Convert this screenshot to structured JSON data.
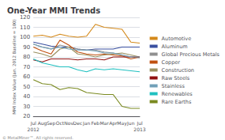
{
  "chart_data": {
    "type": "line",
    "title": "One-Year MMI Trends",
    "ylabel": "MMI Index Value (Jan. 2012 Baseline = 100)",
    "footer": "© MetalMiner™. All rights reserved.",
    "categories": [
      "Jul",
      "Aug",
      "Sep",
      "Oct",
      "Nov",
      "Dec",
      "Jan",
      "Feb",
      "Mar",
      "Apr",
      "May",
      "Jun",
      "Jul"
    ],
    "category_years": [
      "2012",
      null,
      null,
      null,
      null,
      null,
      null,
      null,
      null,
      null,
      null,
      null,
      "2013"
    ],
    "series": [
      {
        "name": "Automotive",
        "color": "#d4891a",
        "values": [
          101,
          102,
          100,
          103,
          101,
          100,
          101,
          113,
          110,
          109,
          108,
          95,
          94
        ]
      },
      {
        "name": "Aluminum",
        "color": "#3a50a0",
        "values": [
          95,
          93,
          91,
          90,
          90,
          88,
          87,
          88,
          88,
          88,
          90,
          90,
          90
        ]
      },
      {
        "name": "Global Precious Metals",
        "color": "#909090",
        "values": [
          93,
          90,
          88,
          92,
          90,
          88,
          87,
          87,
          85,
          84,
          82,
          80,
          79
        ]
      },
      {
        "name": "Copper",
        "color": "#c05010",
        "values": [
          90,
          86,
          83,
          97,
          92,
          85,
          83,
          82,
          83,
          82,
          81,
          78,
          80
        ]
      },
      {
        "name": "Construction",
        "color": "#9a9060",
        "values": [
          85,
          83,
          80,
          88,
          90,
          83,
          82,
          80,
          82,
          83,
          84,
          82,
          80
        ]
      },
      {
        "name": "Raw Steels",
        "color": "#901010",
        "values": [
          77,
          75,
          78,
          78,
          78,
          77,
          78,
          78,
          77,
          80,
          80,
          80,
          80
        ]
      },
      {
        "name": "Stainless",
        "color": "#70a0b8",
        "values": [
          93,
          90,
          88,
          90,
          88,
          87,
          87,
          86,
          84,
          84,
          82,
          80,
          80
        ]
      },
      {
        "name": "Renewables",
        "color": "#20c0c0",
        "values": [
          78,
          74,
          72,
          70,
          70,
          67,
          65,
          68,
          67,
          68,
          67,
          66,
          65
        ]
      },
      {
        "name": "Rare Earths",
        "color": "#7a8a20",
        "values": [
          57,
          53,
          52,
          47,
          49,
          48,
          44,
          43,
          42,
          42,
          30,
          28,
          28
        ]
      }
    ],
    "ylim": [
      20,
      120
    ],
    "yticks": [
      20,
      30,
      40,
      50,
      60,
      70,
      80,
      90,
      100,
      110,
      120
    ],
    "grid": true,
    "legend": "right"
  }
}
